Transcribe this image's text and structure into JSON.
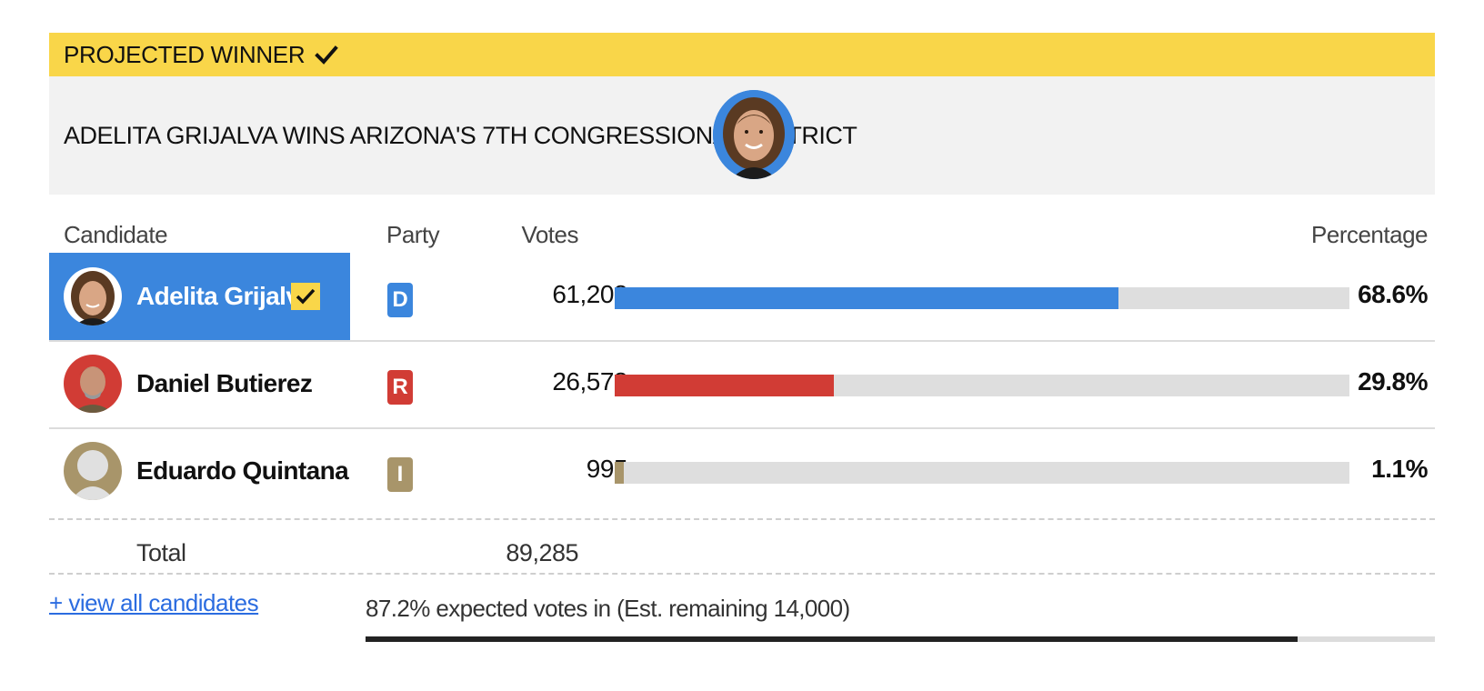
{
  "banner": {
    "label": "PROJECTED WINNER",
    "headline": "ADELITA GRIJALVA WINS ARIZONA'S 7TH CONGRESSIONAL DISTRICT"
  },
  "table": {
    "headers": {
      "candidate": "Candidate",
      "party": "Party",
      "votes": "Votes",
      "percentage": "Percentage"
    },
    "rows": [
      {
        "name": "Adelita Grijalva",
        "party": "D",
        "votes": "61,208",
        "pct": "68.6%",
        "share": 0.686,
        "winner": true,
        "color": "#3b86dd"
      },
      {
        "name": "Daniel Butierez",
        "party": "R",
        "votes": "26,578",
        "pct": "29.8%",
        "share": 0.298,
        "winner": false,
        "color": "#d13c35"
      },
      {
        "name": "Eduardo Quintana",
        "party": "I",
        "votes": "995",
        "pct": "1.1%",
        "share": 0.011,
        "winner": false,
        "color": "#a8956a"
      }
    ],
    "total_label": "Total",
    "total_votes": "89,285"
  },
  "footer": {
    "view_all": "+ view all candidates",
    "expected_text": "87.2% expected votes in (Est. remaining 14,000)",
    "expected_share": 0.872
  },
  "colors": {
    "banner_yellow": "#f9d649",
    "dem_blue": "#3b86dd",
    "rep_red": "#d13c35",
    "ind_tan": "#a8956a"
  }
}
